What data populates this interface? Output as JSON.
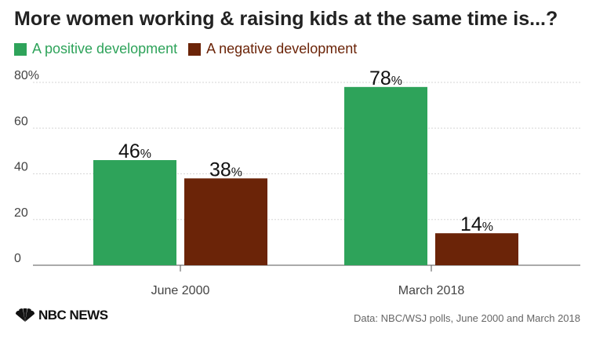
{
  "chart_data": {
    "type": "bar",
    "title": "More women working & raising kids at the same time is...?",
    "categories": [
      "June 2000",
      "March 2018"
    ],
    "series": [
      {
        "name": "A positive development",
        "values": [
          46,
          78
        ],
        "color": "#2ea35a"
      },
      {
        "name": "A negative development",
        "values": [
          38,
          14
        ],
        "color": "#6b2408"
      }
    ],
    "yticks": [
      "80%",
      "60",
      "40",
      "20",
      "0"
    ],
    "ylim": [
      0,
      80
    ],
    "value_suffix": "%",
    "legend_position": "top-left",
    "grid": true
  },
  "footer": {
    "logo_text": "NBC NEWS",
    "source": "Data: NBC/WSJ polls, June 2000 and March 2018"
  }
}
